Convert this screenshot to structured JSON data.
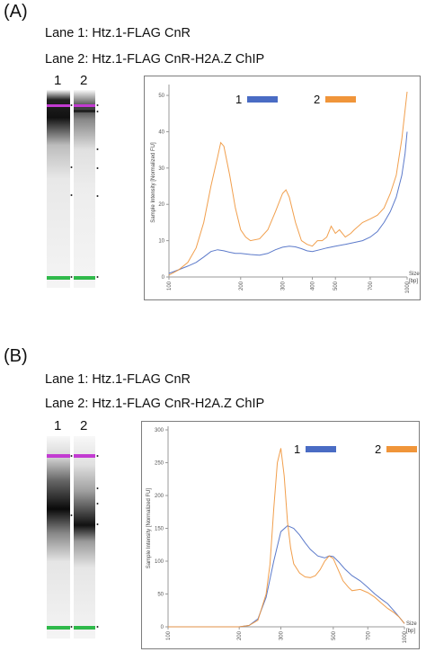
{
  "panels": [
    {
      "letter": "(A)",
      "lane1_desc": "Lane 1: Htz.1-FLAG CnR",
      "lane2_desc": "Lane 2: Htz.1-FLAG CnR-H2A.Z ChIP",
      "gel_lane_labels": [
        "1",
        "2"
      ]
    },
    {
      "letter": "(B)",
      "lane1_desc": "Lane 1: Htz.1-FLAG CnR",
      "lane2_desc": "Lane 2: Htz.1-FLAG CnR-H2A.Z ChIP",
      "gel_lane_labels": [
        "1",
        "2"
      ]
    }
  ],
  "colors": {
    "lane1": "#4a6cc4",
    "lane2": "#f0953a",
    "marker_upper": "#c23bd1",
    "marker_lower": "#2fb94a"
  },
  "chart_data": [
    {
      "type": "line",
      "ylabel": "Sample Intensity [Normalized FU]",
      "xlabel": "Size [bp]",
      "x_scale": "log",
      "xlim": [
        100,
        1000
      ],
      "ylim": [
        0,
        52
      ],
      "x_ticks": [
        "100",
        "200",
        "300",
        "400",
        "500",
        "700",
        "1000"
      ],
      "y_ticks": [
        "0",
        "10",
        "20",
        "30",
        "40",
        "50"
      ],
      "legend_position": "top",
      "series": [
        {
          "name": "1",
          "color": "#4a6cc4",
          "x": [
            100,
            110,
            120,
            130,
            140,
            150,
            160,
            170,
            180,
            190,
            200,
            220,
            240,
            260,
            280,
            300,
            320,
            340,
            360,
            380,
            400,
            430,
            460,
            500,
            550,
            600,
            650,
            700,
            750,
            800,
            850,
            900,
            950,
            980,
            1000
          ],
          "y": [
            1,
            2,
            3,
            4,
            5.5,
            7,
            7.5,
            7.2,
            6.8,
            6.5,
            6.5,
            6.2,
            6,
            6.5,
            7.5,
            8.2,
            8.5,
            8.3,
            7.8,
            7.2,
            7,
            7.5,
            8,
            8.5,
            9,
            9.5,
            10,
            11,
            12.5,
            15,
            18,
            22,
            28,
            34,
            40
          ]
        },
        {
          "name": "2",
          "color": "#f0953a",
          "x": [
            100,
            110,
            120,
            130,
            140,
            150,
            160,
            165,
            170,
            180,
            190,
            200,
            210,
            220,
            240,
            260,
            280,
            300,
            310,
            320,
            340,
            360,
            380,
            400,
            420,
            440,
            460,
            480,
            500,
            520,
            550,
            580,
            600,
            650,
            700,
            750,
            800,
            850,
            900,
            950,
            1000
          ],
          "y": [
            0.5,
            2,
            4,
            8,
            15,
            25,
            33,
            37,
            36,
            28,
            19,
            13,
            11,
            10,
            10.5,
            13,
            18,
            23,
            24,
            22,
            15,
            10,
            9,
            8.5,
            10,
            10,
            11,
            14,
            12,
            13,
            11,
            12,
            13,
            15,
            16,
            17,
            19,
            23,
            28,
            38,
            51
          ]
        }
      ]
    },
    {
      "type": "line",
      "ylabel": "Sample Intensity [Normalized FU]",
      "xlabel": "Size [bp]",
      "x_scale": "log",
      "xlim": [
        100,
        1000
      ],
      "ylim": [
        0,
        300
      ],
      "x_ticks": [
        "100",
        "200",
        "300",
        "500",
        "700",
        "1000"
      ],
      "y_ticks": [
        "0",
        "50",
        "100",
        "150",
        "200",
        "250",
        "300"
      ],
      "legend_position": "top",
      "series": [
        {
          "name": "1",
          "color": "#4a6cc4",
          "x": [
            100,
            150,
            200,
            220,
            240,
            260,
            280,
            300,
            320,
            340,
            360,
            380,
            400,
            430,
            460,
            480,
            500,
            530,
            560,
            600,
            650,
            700,
            750,
            800,
            850,
            900,
            950,
            1000
          ],
          "y": [
            0,
            0,
            0,
            2,
            12,
            45,
            100,
            145,
            154,
            150,
            140,
            128,
            118,
            108,
            105,
            108,
            107,
            98,
            88,
            78,
            70,
            60,
            50,
            42,
            35,
            25,
            15,
            5
          ]
        },
        {
          "name": "2",
          "color": "#f0953a",
          "x": [
            100,
            150,
            200,
            220,
            240,
            260,
            270,
            280,
            290,
            300,
            310,
            320,
            330,
            340,
            360,
            380,
            400,
            420,
            440,
            460,
            480,
            500,
            520,
            550,
            580,
            600,
            650,
            700,
            750,
            800,
            850,
            900,
            950,
            1000
          ],
          "y": [
            0,
            0,
            0,
            2,
            10,
            50,
            95,
            180,
            250,
            272,
            230,
            160,
            120,
            96,
            82,
            76,
            75,
            78,
            87,
            100,
            108,
            104,
            90,
            70,
            60,
            55,
            57,
            52,
            45,
            36,
            28,
            22,
            15,
            5
          ]
        }
      ]
    }
  ]
}
